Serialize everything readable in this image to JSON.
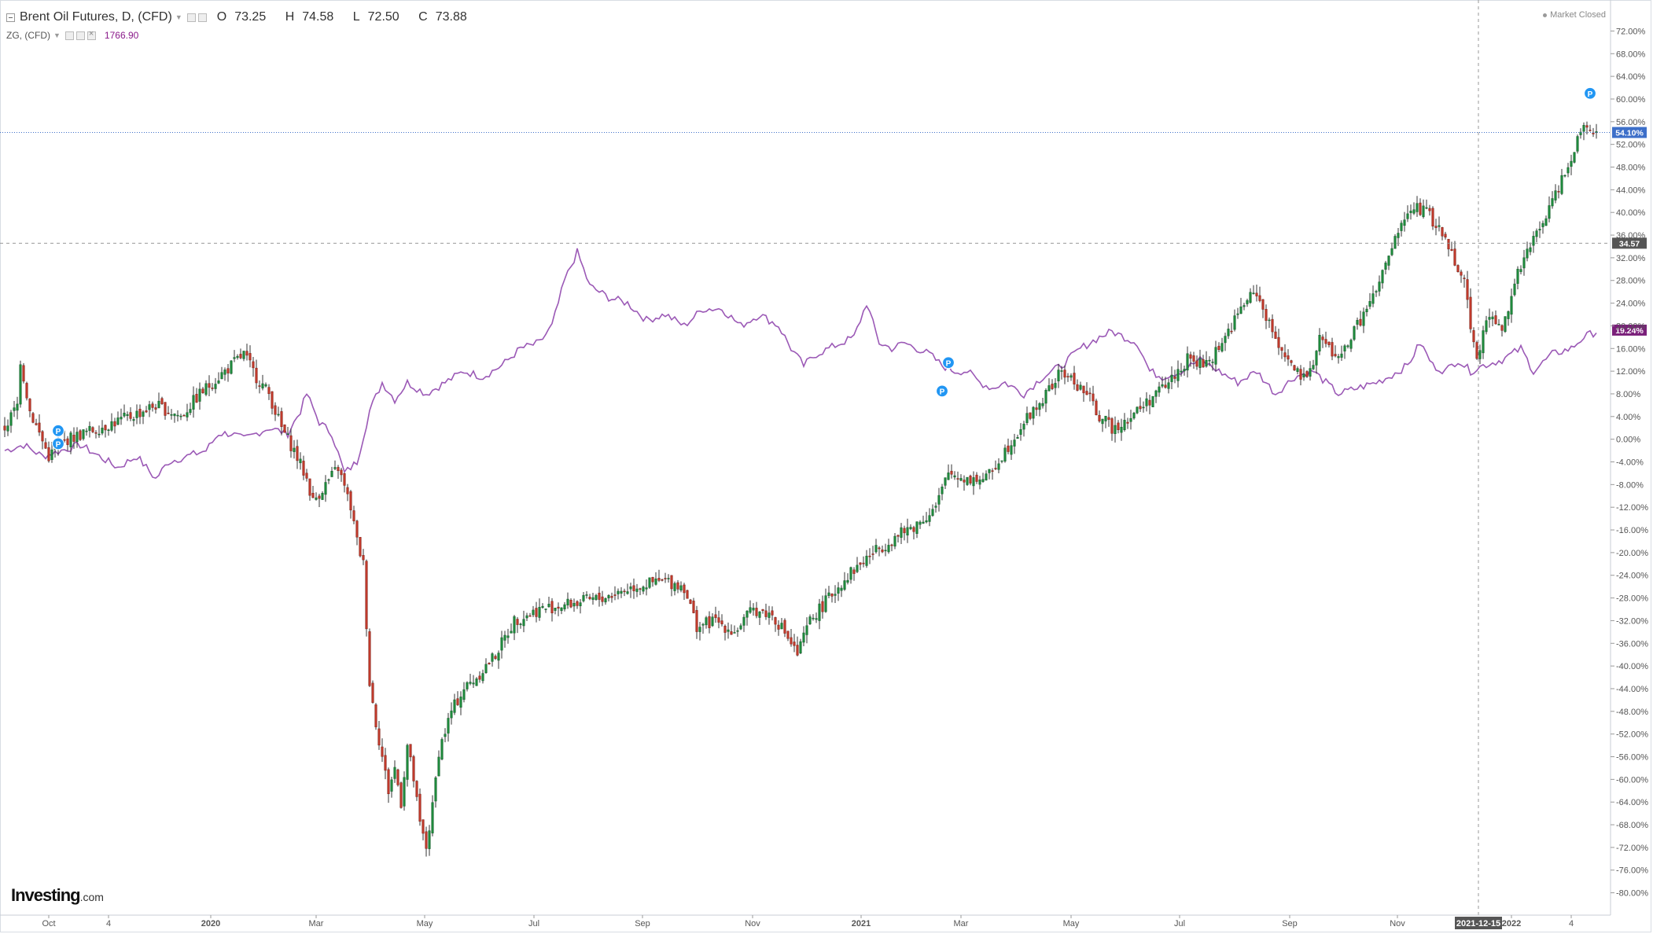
{
  "header": {
    "symbol": "Brent Oil Futures, D, (CFD)",
    "open_label": "O",
    "open": "73.25",
    "high_label": "H",
    "high": "74.58",
    "low_label": "L",
    "low": "72.50",
    "close_label": "C",
    "close": "73.88",
    "compare_symbol": "ZG, (CFD)",
    "compare_value": "1766.90",
    "market_status": "Market Closed"
  },
  "logo": {
    "brand": "Investing",
    "tld": ".com"
  },
  "colors": {
    "up": "#26a69a",
    "up_body": "#1e8a3c",
    "down": "#c0392b",
    "wick": "#333333",
    "compare_line": "#9b59b6",
    "grid": "#e9ecef",
    "axis_text": "#555555",
    "tag_brent": "#3d6fc9",
    "tag_cross": "#555555",
    "tag_zg": "#7a1f7a",
    "marker": "#2196f3"
  },
  "chart_data": {
    "type": "candlestick",
    "y_unit": "% change",
    "ylim": [
      -82,
      74
    ],
    "y_ticks": [
      "72.00%",
      "68.00%",
      "64.00%",
      "60.00%",
      "56.00%",
      "52.00%",
      "48.00%",
      "44.00%",
      "40.00%",
      "36.00%",
      "32.00%",
      "28.00%",
      "24.00%",
      "20.00%",
      "16.00%",
      "12.00%",
      "8.00%",
      "4.00%",
      "0.00%",
      "-4.00%",
      "-8.00%",
      "-12.00%",
      "-16.00%",
      "-20.00%",
      "-24.00%",
      "-28.00%",
      "-32.00%",
      "-36.00%",
      "-40.00%",
      "-44.00%",
      "-48.00%",
      "-52.00%",
      "-56.00%",
      "-60.00%",
      "-64.00%",
      "-68.00%",
      "-72.00%",
      "-76.00%",
      "-80.00%"
    ],
    "x_ticks": [
      {
        "label": "Oct",
        "bold": false
      },
      {
        "label": "4",
        "bold": false
      },
      {
        "label": "2020",
        "bold": true
      },
      {
        "label": "Mar",
        "bold": false
      },
      {
        "label": "May",
        "bold": false
      },
      {
        "label": "Jul",
        "bold": false
      },
      {
        "label": "Sep",
        "bold": false
      },
      {
        "label": "Nov",
        "bold": false
      },
      {
        "label": "2021",
        "bold": true
      },
      {
        "label": "Mar",
        "bold": false
      },
      {
        "label": "May",
        "bold": false
      },
      {
        "label": "Jul",
        "bold": false
      },
      {
        "label": "Sep",
        "bold": false
      },
      {
        "label": "Nov",
        "bold": false
      },
      {
        "label": "2022",
        "bold": true
      },
      {
        "label": "4",
        "bold": false
      }
    ],
    "crosshair": {
      "x_label": "2021-12-15",
      "y_value": 34.57,
      "y_label": "34.57"
    },
    "last_values": [
      {
        "name": "Brent Oil Futures",
        "value": 54.1,
        "label": "54.10%"
      },
      {
        "name": "ZG",
        "value": 19.24,
        "label": "19.24%"
      }
    ],
    "series": [
      {
        "name": "Brent Oil Futures",
        "kind": "candlestick",
        "path": [
          [
            0,
            2
          ],
          [
            4,
            6
          ],
          [
            5,
            14
          ],
          [
            8,
            5
          ],
          [
            14,
            -3
          ],
          [
            20,
            0
          ],
          [
            30,
            2
          ],
          [
            40,
            4
          ],
          [
            48,
            6
          ],
          [
            56,
            4
          ],
          [
            62,
            8
          ],
          [
            70,
            12
          ],
          [
            76,
            15
          ],
          [
            80,
            11
          ],
          [
            84,
            8
          ],
          [
            88,
            2
          ],
          [
            92,
            -2
          ],
          [
            96,
            -7
          ],
          [
            98,
            -11
          ],
          [
            102,
            -8
          ],
          [
            106,
            -5
          ],
          [
            110,
            -12
          ],
          [
            112,
            -18
          ],
          [
            114,
            -22
          ],
          [
            116,
            -43
          ],
          [
            118,
            -50
          ],
          [
            120,
            -56
          ],
          [
            122,
            -62
          ],
          [
            124,
            -58
          ],
          [
            126,
            -64
          ],
          [
            128,
            -54
          ],
          [
            130,
            -60
          ],
          [
            132,
            -68
          ],
          [
            134,
            -72
          ],
          [
            136,
            -65
          ],
          [
            138,
            -55
          ],
          [
            142,
            -48
          ],
          [
            146,
            -44
          ],
          [
            150,
            -42
          ],
          [
            156,
            -38
          ],
          [
            162,
            -32
          ],
          [
            170,
            -30
          ],
          [
            180,
            -29
          ],
          [
            190,
            -28
          ],
          [
            200,
            -26
          ],
          [
            210,
            -25
          ],
          [
            216,
            -26
          ],
          [
            220,
            -33
          ],
          [
            226,
            -32
          ],
          [
            232,
            -34
          ],
          [
            238,
            -30
          ],
          [
            244,
            -31
          ],
          [
            248,
            -34
          ],
          [
            252,
            -38
          ],
          [
            256,
            -32
          ],
          [
            262,
            -28
          ],
          [
            268,
            -24
          ],
          [
            276,
            -20
          ],
          [
            284,
            -17
          ],
          [
            290,
            -15
          ],
          [
            296,
            -12
          ],
          [
            300,
            -6
          ],
          [
            306,
            -7
          ],
          [
            312,
            -7
          ],
          [
            318,
            -2
          ],
          [
            324,
            3
          ],
          [
            330,
            7
          ],
          [
            336,
            12
          ],
          [
            340,
            10
          ],
          [
            344,
            8
          ],
          [
            348,
            4
          ],
          [
            352,
            2
          ],
          [
            358,
            4
          ],
          [
            364,
            7
          ],
          [
            370,
            10
          ],
          [
            376,
            14
          ],
          [
            382,
            13
          ],
          [
            388,
            18
          ],
          [
            394,
            24
          ],
          [
            398,
            26
          ],
          [
            402,
            20
          ],
          [
            406,
            16
          ],
          [
            410,
            12
          ],
          [
            414,
            10
          ],
          [
            418,
            18
          ],
          [
            424,
            14
          ],
          [
            430,
            20
          ],
          [
            436,
            26
          ],
          [
            440,
            32
          ],
          [
            444,
            38
          ],
          [
            448,
            41
          ],
          [
            452,
            40
          ],
          [
            456,
            37
          ],
          [
            460,
            33
          ],
          [
            464,
            28
          ],
          [
            466,
            20
          ],
          [
            468,
            15
          ],
          [
            472,
            22
          ],
          [
            476,
            19
          ],
          [
            480,
            28
          ],
          [
            486,
            35
          ],
          [
            492,
            42
          ],
          [
            498,
            50
          ],
          [
            502,
            56
          ],
          [
            506,
            54
          ]
        ]
      },
      {
        "name": "ZG",
        "kind": "line",
        "path": [
          [
            0,
            -2
          ],
          [
            6,
            -1
          ],
          [
            12,
            -3
          ],
          [
            18,
            -2
          ],
          [
            24,
            -1
          ],
          [
            30,
            -3
          ],
          [
            36,
            -5
          ],
          [
            42,
            -3
          ],
          [
            48,
            -7
          ],
          [
            52,
            -4
          ],
          [
            58,
            -3
          ],
          [
            64,
            -2
          ],
          [
            68,
            1
          ],
          [
            72,
            1
          ],
          [
            76,
            0
          ],
          [
            80,
            1
          ],
          [
            84,
            2
          ],
          [
            90,
            1
          ],
          [
            94,
            5
          ],
          [
            96,
            8
          ],
          [
            100,
            3
          ],
          [
            104,
            1
          ],
          [
            108,
            -6
          ],
          [
            110,
            -5
          ],
          [
            112,
            -4
          ],
          [
            116,
            5
          ],
          [
            120,
            10
          ],
          [
            124,
            7
          ],
          [
            128,
            10
          ],
          [
            134,
            8
          ],
          [
            140,
            10
          ],
          [
            146,
            12
          ],
          [
            152,
            11
          ],
          [
            158,
            13
          ],
          [
            164,
            16
          ],
          [
            170,
            17
          ],
          [
            174,
            20
          ],
          [
            178,
            28
          ],
          [
            182,
            33
          ],
          [
            186,
            27
          ],
          [
            192,
            25
          ],
          [
            198,
            24
          ],
          [
            204,
            21
          ],
          [
            210,
            22
          ],
          [
            216,
            20
          ],
          [
            222,
            23
          ],
          [
            228,
            23
          ],
          [
            234,
            20
          ],
          [
            240,
            22
          ],
          [
            246,
            20
          ],
          [
            250,
            16
          ],
          [
            254,
            13
          ],
          [
            258,
            15
          ],
          [
            262,
            16
          ],
          [
            266,
            17
          ],
          [
            270,
            18
          ],
          [
            274,
            24
          ],
          [
            278,
            17
          ],
          [
            282,
            16
          ],
          [
            286,
            17
          ],
          [
            290,
            16
          ],
          [
            294,
            15
          ],
          [
            298,
            13
          ],
          [
            302,
            12
          ],
          [
            306,
            12
          ],
          [
            310,
            10
          ],
          [
            314,
            9
          ],
          [
            318,
            10
          ],
          [
            324,
            8
          ],
          [
            330,
            11
          ],
          [
            336,
            13
          ],
          [
            342,
            16
          ],
          [
            348,
            18
          ],
          [
            352,
            19
          ],
          [
            356,
            18
          ],
          [
            360,
            17
          ],
          [
            364,
            12
          ],
          [
            368,
            11
          ],
          [
            374,
            12
          ],
          [
            380,
            14
          ],
          [
            386,
            12
          ],
          [
            392,
            10
          ],
          [
            398,
            12
          ],
          [
            404,
            8
          ],
          [
            410,
            11
          ],
          [
            416,
            12
          ],
          [
            420,
            10
          ],
          [
            424,
            8
          ],
          [
            430,
            9
          ],
          [
            436,
            10
          ],
          [
            440,
            11
          ],
          [
            446,
            13
          ],
          [
            450,
            17
          ],
          [
            454,
            13
          ],
          [
            458,
            12
          ],
          [
            462,
            14
          ],
          [
            466,
            12
          ],
          [
            470,
            13
          ],
          [
            476,
            14
          ],
          [
            482,
            16
          ],
          [
            486,
            12
          ],
          [
            492,
            15
          ],
          [
            498,
            16
          ],
          [
            502,
            18
          ],
          [
            506,
            19
          ]
        ]
      }
    ],
    "markers": [
      {
        "label": "P",
        "x": 17,
        "y": 1.5
      },
      {
        "label": "P",
        "x": 17,
        "y": -0.8
      },
      {
        "label": "P",
        "x": 300,
        "y": 13.5
      },
      {
        "label": "P",
        "x": 298,
        "y": 8.5
      },
      {
        "label": "P",
        "x": 504,
        "y": 61
      }
    ]
  }
}
